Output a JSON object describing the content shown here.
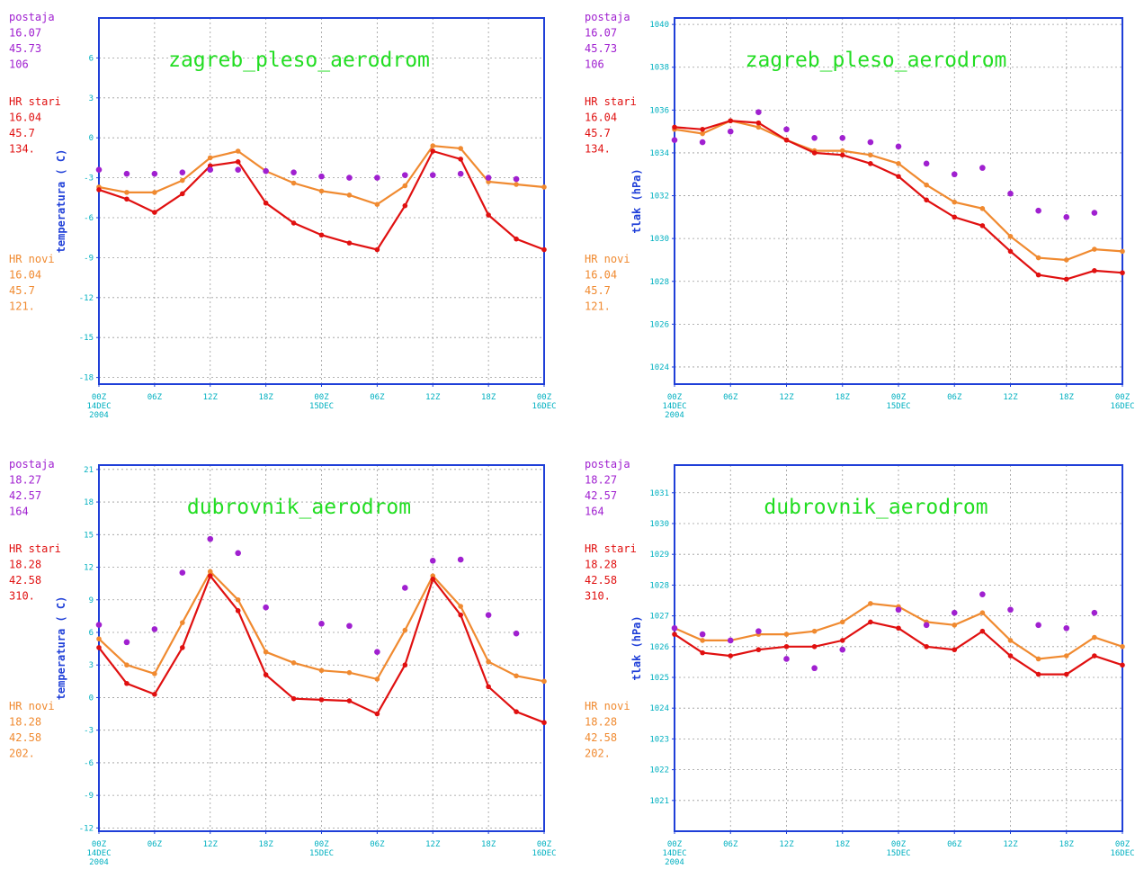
{
  "colors": {
    "postaja": "#a020d0",
    "stari": "#e01010",
    "novi": "#f08a30",
    "frame": "#1f3fd8",
    "title": "#22dd22",
    "tick": "#00b0c0"
  },
  "chart_data": [
    {
      "type": "line",
      "title": "zagreb_pleso_aerodrom",
      "ylabel": "temperatura ( C)",
      "ylim": [
        -18.5,
        9
      ],
      "yticks": [
        -18,
        -15,
        -12,
        -9,
        -6,
        -3,
        0,
        3,
        6
      ],
      "xticks": [
        {
          "l1": "00Z",
          "l2": "14DEC",
          "l3": "2004"
        },
        {
          "l1": "06Z"
        },
        {
          "l1": "12Z"
        },
        {
          "l1": "18Z"
        },
        {
          "l1": "00Z",
          "l2": "15DEC"
        },
        {
          "l1": "06Z"
        },
        {
          "l1": "12Z"
        },
        {
          "l1": "18Z"
        },
        {
          "l1": "00Z",
          "l2": "16DEC"
        }
      ],
      "x": [
        0,
        3,
        6,
        9,
        12,
        15,
        18,
        21,
        24,
        27,
        30,
        33,
        36,
        39,
        42,
        45,
        48
      ],
      "stations": [
        {
          "name": "postaja",
          "lon": "16.07",
          "lat": "45.73",
          "alt": "106"
        },
        {
          "name": "HR stari",
          "lon": "16.04",
          "lat": "45.7",
          "alt": "134."
        },
        {
          "name": "HR novi",
          "lon": "16.04",
          "lat": "45.7",
          "alt": "121."
        }
      ],
      "series": [
        {
          "name": "HR novi",
          "values": [
            -3.7,
            -4.1,
            -4.1,
            -3.2,
            -1.5,
            -1.0,
            -2.5,
            -3.4,
            -4.0,
            -4.3,
            -5.0,
            -3.6,
            -0.6,
            -0.8,
            -3.3,
            -3.5,
            -3.7
          ]
        },
        {
          "name": "HR stari",
          "values": [
            -3.9,
            -4.6,
            -5.6,
            -4.2,
            -2.1,
            -1.8,
            -4.9,
            -6.4,
            -7.3,
            -7.9,
            -8.4,
            -5.1,
            -1.0,
            -1.6,
            -5.8,
            -7.6,
            -8.4
          ]
        },
        {
          "name": "postaja",
          "values": [
            -2.4,
            -2.7,
            -2.7,
            -2.6,
            -2.4,
            -2.4,
            -2.5,
            -2.6,
            -2.9,
            -3.0,
            -3.0,
            -2.8,
            -2.8,
            -2.7,
            -3.0,
            -3.1,
            null
          ]
        }
      ]
    },
    {
      "type": "line",
      "title": "zagreb_pleso_aerodrom",
      "ylabel": "tlak (hPa)",
      "ylim": [
        1023.2,
        1040.3
      ],
      "yticks": [
        1024,
        1026,
        1028,
        1030,
        1032,
        1034,
        1036,
        1038,
        1040
      ],
      "xticks": [
        {
          "l1": "00Z",
          "l2": "14DEC",
          "l3": "2004"
        },
        {
          "l1": "06Z"
        },
        {
          "l1": "12Z"
        },
        {
          "l1": "18Z"
        },
        {
          "l1": "00Z",
          "l2": "15DEC"
        },
        {
          "l1": "06Z"
        },
        {
          "l1": "12Z"
        },
        {
          "l1": "18Z"
        },
        {
          "l1": "00Z",
          "l2": "16DEC"
        }
      ],
      "x": [
        0,
        3,
        6,
        9,
        12,
        15,
        18,
        21,
        24,
        27,
        30,
        33,
        36,
        39,
        42,
        45,
        48
      ],
      "stations": [
        {
          "name": "postaja",
          "lon": "16.07",
          "lat": "45.73",
          "alt": "106"
        },
        {
          "name": "HR stari",
          "lon": "16.04",
          "lat": "45.7",
          "alt": "134."
        },
        {
          "name": "HR novi",
          "lon": "16.04",
          "lat": "45.7",
          "alt": "121."
        }
      ],
      "series": [
        {
          "name": "HR novi",
          "values": [
            1035.1,
            1034.9,
            1035.5,
            1035.2,
            1034.6,
            1034.1,
            1034.1,
            1033.9,
            1033.5,
            1032.5,
            1031.7,
            1031.4,
            1030.1,
            1029.1,
            1029.0,
            1029.5,
            1029.4
          ]
        },
        {
          "name": "HR stari",
          "values": [
            1035.2,
            1035.1,
            1035.5,
            1035.4,
            1034.6,
            1034.0,
            1033.9,
            1033.5,
            1032.9,
            1031.8,
            1031.0,
            1030.6,
            1029.4,
            1028.3,
            1028.1,
            1028.5,
            1028.4
          ]
        },
        {
          "name": "postaja",
          "values": [
            1034.6,
            1034.5,
            1035.0,
            1035.9,
            1035.1,
            1034.7,
            1034.7,
            1034.5,
            1034.3,
            1033.5,
            1033.0,
            1033.3,
            1032.1,
            1031.3,
            1031.0,
            1031.2,
            null
          ]
        }
      ]
    },
    {
      "type": "line",
      "title": "dubrovnik_aerodrom",
      "ylabel": "temperatura ( C)",
      "ylim": [
        -12.3,
        21.4
      ],
      "yticks": [
        -12,
        -9,
        -6,
        -3,
        0,
        3,
        6,
        9,
        12,
        15,
        18,
        21
      ],
      "xticks": [
        {
          "l1": "00Z",
          "l2": "14DEC",
          "l3": "2004"
        },
        {
          "l1": "06Z"
        },
        {
          "l1": "12Z"
        },
        {
          "l1": "18Z"
        },
        {
          "l1": "00Z",
          "l2": "15DEC"
        },
        {
          "l1": "06Z"
        },
        {
          "l1": "12Z"
        },
        {
          "l1": "18Z"
        },
        {
          "l1": "00Z",
          "l2": "16DEC"
        }
      ],
      "x": [
        0,
        3,
        6,
        9,
        12,
        15,
        18,
        21,
        24,
        27,
        30,
        33,
        36,
        39,
        42,
        45,
        48
      ],
      "stations": [
        {
          "name": "postaja",
          "lon": "18.27",
          "lat": "42.57",
          "alt": "164"
        },
        {
          "name": "HR stari",
          "lon": "18.28",
          "lat": "42.58",
          "alt": "310."
        },
        {
          "name": "HR novi",
          "lon": "18.28",
          "lat": "42.58",
          "alt": "202."
        }
      ],
      "series": [
        {
          "name": "HR novi",
          "values": [
            5.4,
            3.0,
            2.2,
            6.9,
            11.6,
            9.0,
            4.2,
            3.2,
            2.5,
            2.3,
            1.7,
            6.2,
            11.2,
            8.4,
            3.3,
            2.0,
            1.5
          ]
        },
        {
          "name": "HR stari",
          "values": [
            4.6,
            1.3,
            0.3,
            4.6,
            11.2,
            8.0,
            2.1,
            -0.1,
            -0.2,
            -0.3,
            -1.5,
            3.0,
            10.9,
            7.6,
            1.0,
            -1.3,
            -2.3
          ]
        },
        {
          "name": "postaja",
          "values": [
            6.7,
            5.1,
            6.3,
            11.5,
            14.6,
            13.3,
            8.3,
            null,
            6.8,
            6.6,
            4.2,
            10.1,
            12.6,
            12.7,
            7.6,
            5.9,
            null
          ]
        }
      ]
    },
    {
      "type": "line",
      "title": "dubrovnik_aerodrom",
      "ylabel": "tlak (hPa)",
      "ylim": [
        1020.0,
        1031.9
      ],
      "yticks": [
        1021,
        1022,
        1023,
        1024,
        1025,
        1026,
        1027,
        1028,
        1029,
        1030,
        1031
      ],
      "xticks": [
        {
          "l1": "00Z",
          "l2": "14DEC",
          "l3": "2004"
        },
        {
          "l1": "06Z"
        },
        {
          "l1": "12Z"
        },
        {
          "l1": "18Z"
        },
        {
          "l1": "00Z",
          "l2": "15DEC"
        },
        {
          "l1": "06Z"
        },
        {
          "l1": "12Z"
        },
        {
          "l1": "18Z"
        },
        {
          "l1": "00Z",
          "l2": "16DEC"
        }
      ],
      "x": [
        0,
        3,
        6,
        9,
        12,
        15,
        18,
        21,
        24,
        27,
        30,
        33,
        36,
        39,
        42,
        45,
        48
      ],
      "stations": [
        {
          "name": "postaja",
          "lon": "18.27",
          "lat": "42.57",
          "alt": "164"
        },
        {
          "name": "HR stari",
          "lon": "18.28",
          "lat": "42.58",
          "alt": "310."
        },
        {
          "name": "HR novi",
          "lon": "18.28",
          "lat": "42.58",
          "alt": "202."
        }
      ],
      "series": [
        {
          "name": "HR novi",
          "values": [
            1026.6,
            1026.2,
            1026.2,
            1026.4,
            1026.4,
            1026.5,
            1026.8,
            1027.4,
            1027.3,
            1026.8,
            1026.7,
            1027.1,
            1026.2,
            1025.6,
            1025.7,
            1026.3,
            1026.0
          ]
        },
        {
          "name": "HR stari",
          "values": [
            1026.4,
            1025.8,
            1025.7,
            1025.9,
            1026.0,
            1026.0,
            1026.2,
            1026.8,
            1026.6,
            1026.0,
            1025.9,
            1026.5,
            1025.7,
            1025.1,
            1025.1,
            1025.7,
            1025.4
          ]
        },
        {
          "name": "postaja",
          "values": [
            1026.6,
            1026.4,
            1026.2,
            1026.5,
            1025.6,
            1025.3,
            1025.9,
            null,
            1027.2,
            1026.7,
            1027.1,
            1027.7,
            1027.2,
            1026.7,
            1026.6,
            1027.1,
            null
          ]
        }
      ]
    }
  ]
}
